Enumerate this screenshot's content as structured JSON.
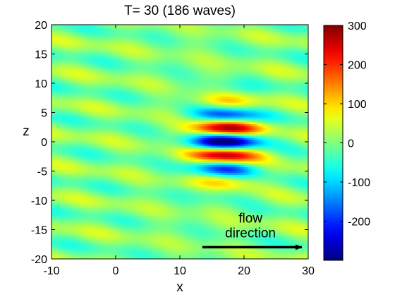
{
  "chart_data": {
    "type": "heatmap",
    "title": "T= 30   (186 waves)",
    "xlabel": "x",
    "ylabel": "z",
    "xlim": [
      -10,
      30
    ],
    "ylim": [
      -20,
      20
    ],
    "x_ticks": [
      "-10",
      "0",
      "10",
      "20",
      "30"
    ],
    "y_ticks": [
      "-20",
      "-15",
      "-10",
      "-5",
      "0",
      "5",
      "10",
      "15",
      "20"
    ],
    "colorbar": {
      "colormap": "jet",
      "range": [
        -300,
        300
      ],
      "tick_values": [
        -200,
        -100,
        0,
        100,
        200,
        300
      ],
      "tick_labels": [
        "-200",
        "-100",
        "0",
        "100",
        "200",
        "300"
      ]
    },
    "wave_packet": {
      "center_x": 17,
      "center_z": 0,
      "peak_amplitude": 300,
      "z_wavelength": 4.8,
      "x_half_width": 5.2,
      "z_half_width": 6.2
    },
    "grid": false,
    "annotations": [
      {
        "text": "flow",
        "x": 21,
        "z": -13.8
      },
      {
        "text": "direction",
        "x": 21,
        "z": -16.3
      },
      {
        "type": "arrow",
        "from": [
          13.5,
          -18
        ],
        "to": [
          29,
          -18
        ]
      }
    ]
  }
}
